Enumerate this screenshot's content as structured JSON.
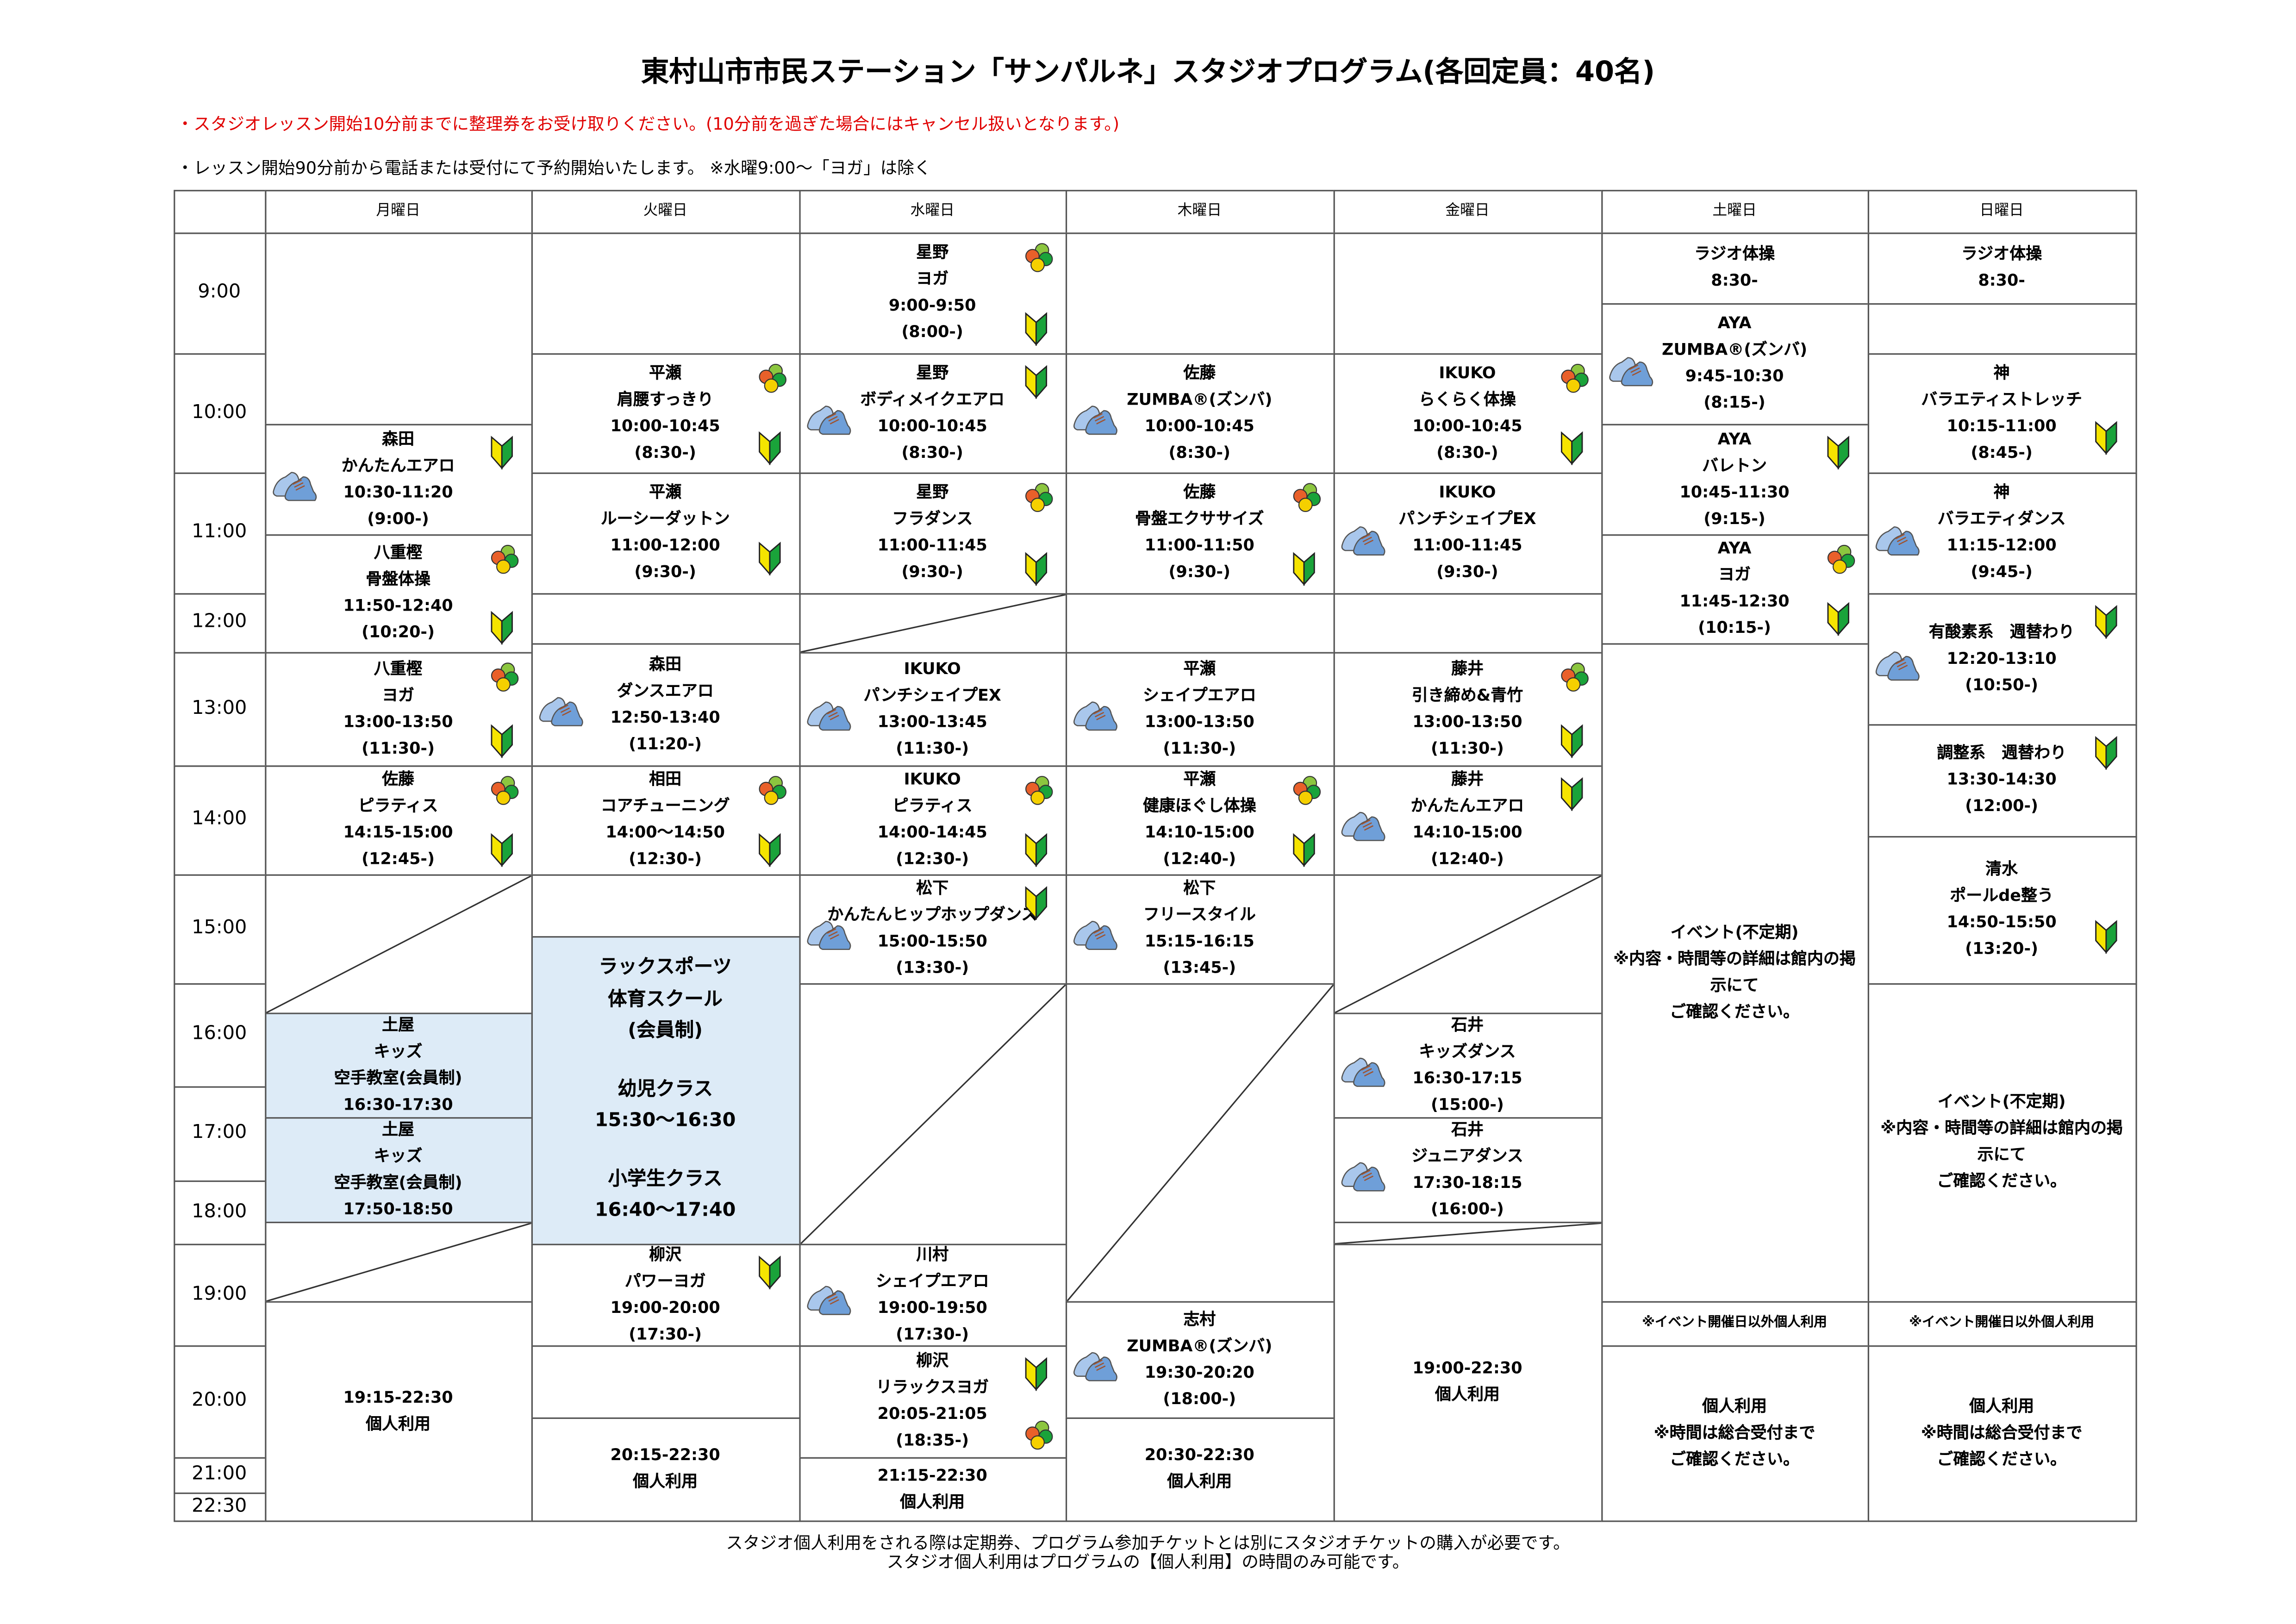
{
  "title": "東村山市市民ステーション「サンパルネ」スタジオプログラム(各回定員：40名)",
  "notes": {
    "red": "・スタジオレッスン開始10分前までに整理券をお受け取りください。(10分前を過ぎた場合にはキャンセル扱いとなります。)",
    "black": "・レッスン開始90分前から電話または受付にて予約開始いたします。 ※水曜9:00～「ヨガ」は除く"
  },
  "days": [
    "月曜日",
    "火曜日",
    "水曜日",
    "木曜日",
    "金曜日",
    "土曜日",
    "日曜日"
  ],
  "times": [
    "9:00",
    "10:00",
    "11:00",
    "12:00",
    "13:00",
    "14:00",
    "15:00",
    "16:00",
    "17:00",
    "18:00",
    "19:00",
    "20:00",
    "21:00",
    "22:30"
  ],
  "colors": {
    "member_bg": "#ddebf7",
    "notice_red": "#e00000",
    "shoe": "#6f9fd8",
    "beginner_yellow": "#f5e400",
    "beginner_green": "#1aa33a"
  },
  "columns": [
    [
      {
        "lines": [
          "森田",
          "かんたんエアロ",
          "10:30-11:20",
          "(9:00-)"
        ],
        "icons": [
          "shoe-icon",
          "beginner-mark-icon"
        ]
      },
      {
        "lines": [
          "八重樫",
          "骨盤体操",
          "11:50-12:40",
          "(10:20-)"
        ],
        "icons": [
          "clover-icon",
          "beginner-mark-icon"
        ]
      },
      {
        "lines": [
          "八重樫",
          "ヨガ",
          "13:00-13:50",
          "(11:30-)"
        ],
        "icons": [
          "clover-icon",
          "beginner-mark-icon"
        ]
      },
      {
        "lines": [
          "佐藤",
          "ピラティス",
          "14:15-15:00",
          "(12:45-)"
        ],
        "icons": [
          "clover-icon",
          "beginner-mark-icon"
        ]
      },
      {
        "lines": [
          "土屋",
          "キッズ",
          "空手教室(会員制)",
          "16:30-17:30"
        ],
        "icons": []
      },
      {
        "lines": [
          "土屋",
          "キッズ",
          "空手教室(会員制)",
          "17:50-18:50"
        ],
        "icons": []
      },
      {
        "lines": [
          "19:15-22:30",
          "個人利用"
        ],
        "icons": []
      }
    ],
    [
      {
        "lines": [
          "平瀬",
          "肩腰すっきり",
          "10:00-10:45",
          "(8:30-)"
        ],
        "icons": [
          "clover-icon",
          "beginner-mark-icon"
        ]
      },
      {
        "lines": [
          "平瀬",
          "ルーシーダットン",
          "11:00-12:00",
          "(9:30-)"
        ],
        "icons": [
          "beginner-mark-icon"
        ]
      },
      {
        "lines": [
          "森田",
          "ダンスエアロ",
          "12:50-13:40",
          "(11:20-)"
        ],
        "icons": [
          "shoe-icon"
        ]
      },
      {
        "lines": [
          "相田",
          "コアチューニング",
          "14:00～14:50",
          "(12:30-)"
        ],
        "icons": [
          "clover-icon",
          "beginner-mark-icon"
        ]
      },
      {
        "lines": [
          "ラックスポーツ",
          "体育スクール",
          "(会員制)",
          "",
          "幼児クラス",
          "15:30～16:30",
          "",
          "小学生クラス",
          "16:40～17:40"
        ],
        "icons": []
      },
      {
        "lines": [
          "柳沢",
          "パワーヨガ",
          "19:00-20:00",
          "(17:30-)"
        ],
        "icons": [
          "beginner-mark-icon"
        ]
      },
      {
        "lines": [
          "20:15-22:30",
          "個人利用"
        ],
        "icons": []
      }
    ],
    [
      {
        "lines": [
          "星野",
          "ヨガ",
          "9:00-9:50",
          "(8:00-)"
        ],
        "icons": [
          "clover-icon",
          "beginner-mark-icon"
        ]
      },
      {
        "lines": [
          "星野",
          "ボディメイクエアロ",
          "10:00-10:45",
          "(8:30-)"
        ],
        "icons": [
          "shoe-icon",
          "beginner-mark-icon"
        ]
      },
      {
        "lines": [
          "星野",
          "フラダンス",
          "11:00-11:45",
          "(9:30-)"
        ],
        "icons": [
          "clover-icon",
          "beginner-mark-icon"
        ]
      },
      {
        "lines": [
          "IKUKO",
          "パンチシェイプEX",
          "13:00-13:45",
          "(11:30-)"
        ],
        "icons": [
          "shoe-icon"
        ]
      },
      {
        "lines": [
          "IKUKO",
          "ピラティス",
          "14:00-14:45",
          "(12:30-)"
        ],
        "icons": [
          "clover-icon",
          "beginner-mark-icon"
        ]
      },
      {
        "lines": [
          "松下",
          "かんたんヒップホップダンス",
          "15:00-15:50",
          "(13:30-)"
        ],
        "icons": [
          "shoe-icon",
          "beginner-mark-icon"
        ]
      },
      {
        "lines": [
          "川村",
          "シェイプエアロ",
          "19:00-19:50",
          "(17:30-)"
        ],
        "icons": [
          "shoe-icon"
        ]
      },
      {
        "lines": [
          "柳沢",
          "リラックスヨガ",
          "20:05-21:05",
          "(18:35-)"
        ],
        "icons": [
          "beginner-mark-icon",
          "clover-icon"
        ]
      },
      {
        "lines": [
          "21:15-22:30",
          "個人利用"
        ],
        "icons": []
      }
    ],
    [
      {
        "lines": [
          "佐藤",
          "ZUMBA®(ズンバ)",
          "10:00-10:45",
          "(8:30-)"
        ],
        "icons": [
          "shoe-icon"
        ]
      },
      {
        "lines": [
          "佐藤",
          "骨盤エクササイズ",
          "11:00-11:50",
          "(9:30-)"
        ],
        "icons": [
          "clover-icon",
          "beginner-mark-icon"
        ]
      },
      {
        "lines": [
          "平瀬",
          "シェイプエアロ",
          "13:00-13:50",
          "(11:30-)"
        ],
        "icons": [
          "shoe-icon"
        ]
      },
      {
        "lines": [
          "平瀬",
          "健康ほぐし体操",
          "14:10-15:00",
          "(12:40-)"
        ],
        "icons": [
          "clover-icon",
          "beginner-mark-icon"
        ]
      },
      {
        "lines": [
          "松下",
          "フリースタイル",
          "15:15-16:15",
          "(13:45-)"
        ],
        "icons": [
          "shoe-icon"
        ]
      },
      {
        "lines": [
          "志村",
          "ZUMBA®(ズンバ)",
          "19:30-20:20",
          "(18:00-)"
        ],
        "icons": [
          "shoe-icon"
        ]
      },
      {
        "lines": [
          "20:30-22:30",
          "個人利用"
        ],
        "icons": []
      }
    ],
    [
      {
        "lines": [
          "IKUKO",
          "らくらく体操",
          "10:00-10:45",
          "(8:30-)"
        ],
        "icons": [
          "clover-icon",
          "beginner-mark-icon"
        ]
      },
      {
        "lines": [
          "IKUKO",
          "パンチシェイプEX",
          "11:00-11:45",
          "(9:30-)"
        ],
        "icons": [
          "shoe-icon"
        ]
      },
      {
        "lines": [
          "藤井",
          "引き締め&青竹",
          "13:00-13:50",
          "(11:30-)"
        ],
        "icons": [
          "clover-icon",
          "beginner-mark-icon"
        ]
      },
      {
        "lines": [
          "藤井",
          "かんたんエアロ",
          "14:10-15:00",
          "(12:40-)"
        ],
        "icons": [
          "beginner-mark-icon",
          "shoe-icon"
        ]
      },
      {
        "lines": [
          "石井",
          "キッズダンス",
          "16:30-17:15",
          "(15:00-)"
        ],
        "icons": [
          "shoe-icon"
        ]
      },
      {
        "lines": [
          "石井",
          "ジュニアダンス",
          "17:30-18:15",
          "(16:00-)"
        ],
        "icons": [
          "shoe-icon"
        ]
      },
      {
        "lines": [
          "19:00-22:30",
          "個人利用"
        ],
        "icons": []
      }
    ],
    [
      {
        "lines": [
          "ラジオ体操",
          "8:30-"
        ],
        "icons": []
      },
      {
        "lines": [
          "AYA",
          "ZUMBA®(ズンバ)",
          "9:45-10:30",
          "(8:15-)"
        ],
        "icons": [
          "shoe-icon"
        ]
      },
      {
        "lines": [
          "AYA",
          "バレトン",
          "10:45-11:30",
          "(9:15-)"
        ],
        "icons": [
          "beginner-mark-icon"
        ]
      },
      {
        "lines": [
          "AYA",
          "ヨガ",
          "11:45-12:30",
          "(10:15-)"
        ],
        "icons": [
          "clover-icon",
          "beginner-mark-icon"
        ]
      },
      {
        "lines": [
          "イベント(不定期)",
          "※内容・時間等の詳細は館内の掲示にて",
          "ご確認ください。"
        ],
        "icons": []
      },
      {
        "lines": [
          "※イベント開催日以外個人利用"
        ],
        "icons": []
      },
      {
        "lines": [
          "個人利用",
          "※時間は総合受付まで",
          "ご確認ください。"
        ],
        "icons": []
      }
    ],
    [
      {
        "lines": [
          "ラジオ体操",
          "8:30-"
        ],
        "icons": []
      },
      {
        "lines": [
          "神",
          "バラエティストレッチ",
          "10:15-11:00",
          "(8:45-)"
        ],
        "icons": [
          "beginner-mark-icon"
        ]
      },
      {
        "lines": [
          "神",
          "バラエティダンス",
          "11:15-12:00",
          "(9:45-)"
        ],
        "icons": [
          "shoe-icon"
        ]
      },
      {
        "lines": [
          "有酸素系　週替わり",
          "12:20-13:10",
          "(10:50-)"
        ],
        "icons": [
          "shoe-icon",
          "beginner-mark-icon"
        ]
      },
      {
        "lines": [
          "調整系　週替わり",
          "13:30-14:30",
          "(12:00-)"
        ],
        "icons": [
          "beginner-mark-icon"
        ]
      },
      {
        "lines": [
          "清水",
          "ポールde整う",
          "14:50-15:50",
          "(13:20-)"
        ],
        "icons": [
          "beginner-mark-icon"
        ]
      },
      {
        "lines": [
          "イベント(不定期)",
          "※内容・時間等の詳細は館内の掲示にて",
          "ご確認ください。"
        ],
        "icons": []
      },
      {
        "lines": [
          "※イベント開催日以外個人利用"
        ],
        "icons": []
      },
      {
        "lines": [
          "個人利用",
          "※時間は総合受付まで",
          "ご確認ください。"
        ],
        "icons": []
      }
    ]
  ],
  "footer": [
    "スタジオ個人利用をされる際は定期券、プログラム参加チケットとは別にスタジオチケットの購入が必要です。",
    "スタジオ個人利用はプログラムの【個人利用】の時間のみ可能です。"
  ]
}
